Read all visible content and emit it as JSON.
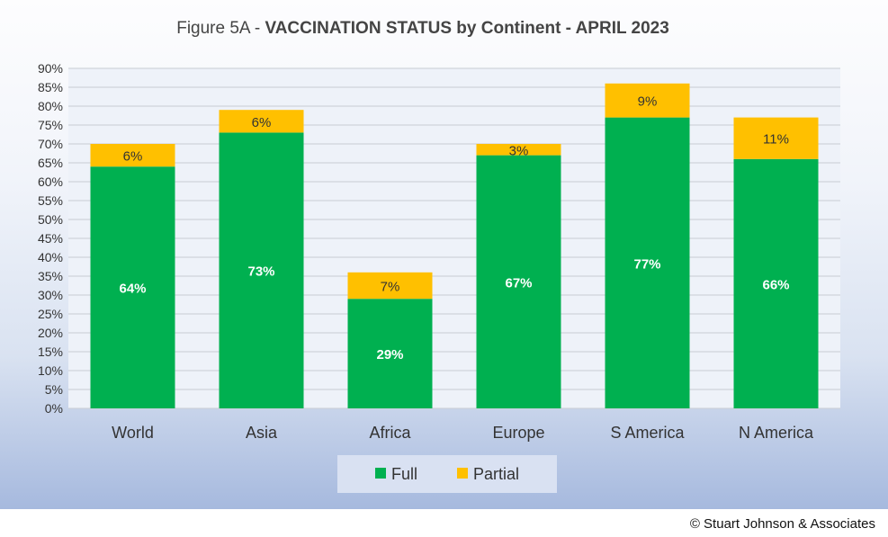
{
  "chart_data": {
    "type": "bar",
    "stacked": true,
    "title_prefix": "Figure 5A - ",
    "title_main": "VACCINATION STATUS by Continent - APRIL 2023",
    "categories": [
      "World",
      "Asia",
      "Africa",
      "Europe",
      "S America",
      "N America"
    ],
    "series": [
      {
        "name": "Full",
        "color": "#00b050",
        "values": [
          64,
          73,
          29,
          67,
          77,
          66
        ],
        "labels": [
          "64%",
          "73%",
          "29%",
          "67%",
          "77%",
          "66%"
        ]
      },
      {
        "name": "Partial",
        "color": "#ffc000",
        "values": [
          6,
          6,
          7,
          3,
          9,
          11
        ],
        "labels": [
          "6%",
          "6%",
          "7%",
          "3%",
          "9%",
          "11%"
        ]
      }
    ],
    "ylim": [
      0,
      90
    ],
    "ytick_step": 5,
    "ytick_labels": [
      "0%",
      "5%",
      "10%",
      "15%",
      "20%",
      "25%",
      "30%",
      "35%",
      "40%",
      "45%",
      "50%",
      "55%",
      "60%",
      "65%",
      "70%",
      "75%",
      "80%",
      "85%",
      "90%"
    ],
    "grid": true,
    "legend_position": "bottom"
  },
  "footer": {
    "copyright": "© Stuart Johnson & Associates"
  }
}
